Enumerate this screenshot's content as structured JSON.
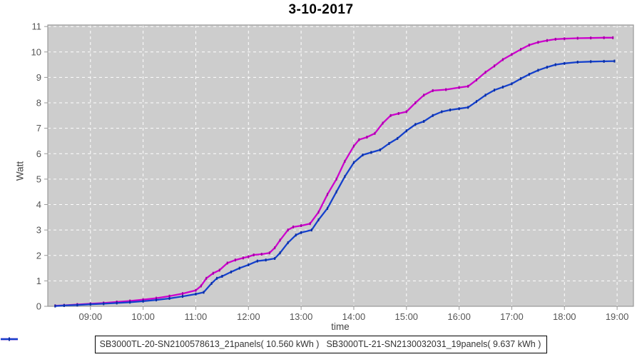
{
  "title": "3-10-2017",
  "chart_data": {
    "type": "line",
    "title": "3-10-2017",
    "xlabel": "time",
    "ylabel": "Watt",
    "x_tick_values": [
      9,
      10,
      11,
      12,
      13,
      14,
      15,
      16,
      17,
      18,
      19
    ],
    "x_tick_labels": [
      "09:00",
      "10:00",
      "11:00",
      "12:00",
      "13:00",
      "14:00",
      "15:00",
      "16:00",
      "17:00",
      "18:00",
      "19:00"
    ],
    "y_tick_values": [
      0,
      1,
      2,
      3,
      4,
      5,
      6,
      7,
      8,
      9,
      10,
      11
    ],
    "xlim": [
      8.19,
      19.31
    ],
    "ylim": [
      0,
      11.06
    ],
    "grid": true,
    "grid_style": "dashed-white",
    "plot_background": "#cdcdcd",
    "grid_color": "#ffffff",
    "border_color": "#999999",
    "tick_text_color": "#555555",
    "legend_position": "bottom-center",
    "series": [
      {
        "name": "SB3000TL-20-SN2100578613_21panels( 10.560 kWh )",
        "color": "#cc00cc",
        "marker_color": "#a300a3",
        "total_kwh": "10.560",
        "points": [
          [
            8.33,
            0.02
          ],
          [
            8.5,
            0.04
          ],
          [
            8.75,
            0.07
          ],
          [
            9.0,
            0.1
          ],
          [
            9.25,
            0.13
          ],
          [
            9.5,
            0.17
          ],
          [
            9.75,
            0.21
          ],
          [
            10.0,
            0.26
          ],
          [
            10.25,
            0.32
          ],
          [
            10.5,
            0.4
          ],
          [
            10.75,
            0.5
          ],
          [
            11.0,
            0.63
          ],
          [
            11.1,
            0.8
          ],
          [
            11.2,
            1.1
          ],
          [
            11.33,
            1.3
          ],
          [
            11.45,
            1.42
          ],
          [
            11.6,
            1.7
          ],
          [
            11.75,
            1.82
          ],
          [
            11.9,
            1.9
          ],
          [
            12.0,
            1.95
          ],
          [
            12.1,
            2.02
          ],
          [
            12.25,
            2.05
          ],
          [
            12.4,
            2.1
          ],
          [
            12.5,
            2.3
          ],
          [
            12.6,
            2.6
          ],
          [
            12.75,
            3.0
          ],
          [
            12.85,
            3.12
          ],
          [
            13.0,
            3.17
          ],
          [
            13.17,
            3.25
          ],
          [
            13.33,
            3.7
          ],
          [
            13.5,
            4.4
          ],
          [
            13.67,
            5.0
          ],
          [
            13.83,
            5.7
          ],
          [
            14.0,
            6.3
          ],
          [
            14.1,
            6.55
          ],
          [
            14.25,
            6.65
          ],
          [
            14.4,
            6.8
          ],
          [
            14.55,
            7.2
          ],
          [
            14.7,
            7.5
          ],
          [
            14.85,
            7.58
          ],
          [
            15.0,
            7.65
          ],
          [
            15.17,
            8.0
          ],
          [
            15.33,
            8.3
          ],
          [
            15.5,
            8.48
          ],
          [
            15.75,
            8.52
          ],
          [
            16.0,
            8.6
          ],
          [
            16.17,
            8.65
          ],
          [
            16.33,
            8.9
          ],
          [
            16.5,
            9.2
          ],
          [
            16.67,
            9.45
          ],
          [
            16.83,
            9.7
          ],
          [
            17.0,
            9.9
          ],
          [
            17.17,
            10.1
          ],
          [
            17.33,
            10.27
          ],
          [
            17.5,
            10.38
          ],
          [
            17.67,
            10.45
          ],
          [
            17.83,
            10.5
          ],
          [
            18.0,
            10.52
          ],
          [
            18.25,
            10.54
          ],
          [
            18.5,
            10.55
          ],
          [
            18.75,
            10.56
          ],
          [
            18.92,
            10.56
          ]
        ]
      },
      {
        "name": "SB3000TL-21-SN2130032031_19panels( 9.637 kWh )",
        "color": "#1440cc",
        "marker_color": "#0d2fa0",
        "total_kwh": "9.637",
        "points": [
          [
            8.33,
            0.01
          ],
          [
            8.5,
            0.03
          ],
          [
            8.75,
            0.05
          ],
          [
            9.0,
            0.08
          ],
          [
            9.25,
            0.1
          ],
          [
            9.5,
            0.13
          ],
          [
            9.75,
            0.16
          ],
          [
            10.0,
            0.2
          ],
          [
            10.25,
            0.25
          ],
          [
            10.5,
            0.31
          ],
          [
            10.75,
            0.39
          ],
          [
            11.0,
            0.48
          ],
          [
            11.15,
            0.55
          ],
          [
            11.3,
            0.9
          ],
          [
            11.4,
            1.1
          ],
          [
            11.5,
            1.18
          ],
          [
            11.67,
            1.35
          ],
          [
            11.83,
            1.5
          ],
          [
            12.0,
            1.63
          ],
          [
            12.17,
            1.78
          ],
          [
            12.33,
            1.82
          ],
          [
            12.5,
            1.88
          ],
          [
            12.6,
            2.1
          ],
          [
            12.75,
            2.5
          ],
          [
            12.9,
            2.8
          ],
          [
            13.0,
            2.9
          ],
          [
            13.2,
            3.0
          ],
          [
            13.33,
            3.4
          ],
          [
            13.5,
            3.85
          ],
          [
            13.67,
            4.5
          ],
          [
            13.83,
            5.1
          ],
          [
            14.0,
            5.65
          ],
          [
            14.17,
            5.95
          ],
          [
            14.33,
            6.05
          ],
          [
            14.5,
            6.15
          ],
          [
            14.67,
            6.4
          ],
          [
            14.83,
            6.6
          ],
          [
            15.0,
            6.9
          ],
          [
            15.17,
            7.15
          ],
          [
            15.33,
            7.27
          ],
          [
            15.5,
            7.5
          ],
          [
            15.67,
            7.65
          ],
          [
            15.83,
            7.72
          ],
          [
            16.0,
            7.77
          ],
          [
            16.17,
            7.82
          ],
          [
            16.33,
            8.05
          ],
          [
            16.5,
            8.3
          ],
          [
            16.67,
            8.5
          ],
          [
            16.83,
            8.62
          ],
          [
            17.0,
            8.75
          ],
          [
            17.17,
            8.95
          ],
          [
            17.33,
            9.12
          ],
          [
            17.5,
            9.28
          ],
          [
            17.67,
            9.4
          ],
          [
            17.83,
            9.5
          ],
          [
            18.0,
            9.55
          ],
          [
            18.25,
            9.6
          ],
          [
            18.5,
            9.62
          ],
          [
            18.75,
            9.63
          ],
          [
            18.95,
            9.64
          ]
        ]
      }
    ]
  }
}
